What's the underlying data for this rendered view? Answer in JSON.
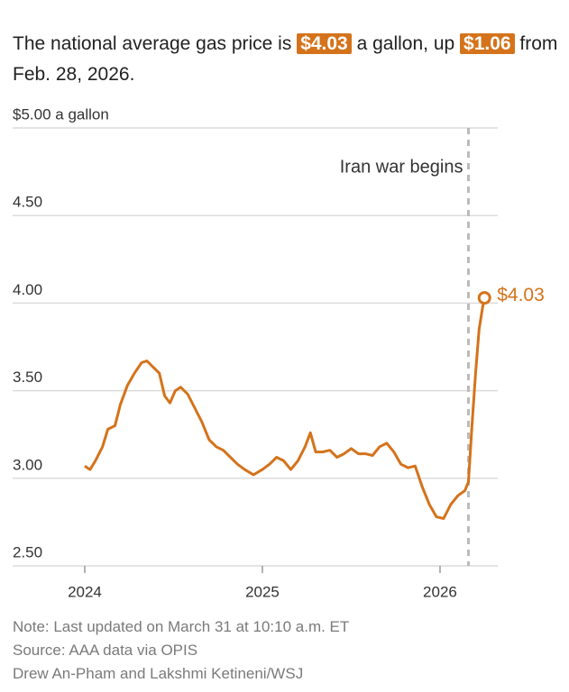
{
  "chart_data": {
    "type": "line",
    "title_parts": [
      "The national average gas price is ",
      "$4.03",
      " a gallon, up ",
      "$1.06",
      " from Feb. 28, 2026."
    ],
    "x": [
      2024.0,
      2024.03,
      2024.06,
      2024.1,
      2024.13,
      2024.17,
      2024.2,
      2024.24,
      2024.28,
      2024.32,
      2024.35,
      2024.38,
      2024.42,
      2024.45,
      2024.48,
      2024.51,
      2024.54,
      2024.58,
      2024.62,
      2024.66,
      2024.7,
      2024.74,
      2024.78,
      2024.82,
      2024.86,
      2024.9,
      2024.95,
      2025.0,
      2025.04,
      2025.08,
      2025.12,
      2025.16,
      2025.2,
      2025.24,
      2025.27,
      2025.3,
      2025.34,
      2025.38,
      2025.42,
      2025.46,
      2025.5,
      2025.54,
      2025.58,
      2025.62,
      2025.66,
      2025.7,
      2025.74,
      2025.78,
      2025.82,
      2025.86,
      2025.9,
      2025.94,
      2025.98,
      2026.02,
      2026.06,
      2026.1,
      2026.14,
      2026.16,
      2026.18,
      2026.2,
      2026.22,
      2026.24,
      2026.25
    ],
    "series": [
      {
        "color": "#d4731b",
        "values": [
          3.07,
          3.05,
          3.1,
          3.18,
          3.28,
          3.3,
          3.42,
          3.53,
          3.6,
          3.66,
          3.67,
          3.64,
          3.6,
          3.47,
          3.43,
          3.5,
          3.52,
          3.48,
          3.4,
          3.32,
          3.22,
          3.18,
          3.16,
          3.12,
          3.08,
          3.05,
          3.02,
          3.05,
          3.08,
          3.12,
          3.1,
          3.05,
          3.1,
          3.18,
          3.26,
          3.15,
          3.15,
          3.16,
          3.12,
          3.14,
          3.17,
          3.14,
          3.14,
          3.13,
          3.18,
          3.2,
          3.15,
          3.08,
          3.06,
          3.07,
          2.95,
          2.85,
          2.78,
          2.77,
          2.85,
          2.9,
          2.93,
          2.98,
          3.3,
          3.6,
          3.85,
          3.98,
          4.03
        ],
        "value_labels": {
          "62": "$4.03"
        }
      }
    ],
    "xlim": [
      2023.594,
      2026.325
    ],
    "xticks": [
      2024,
      2025,
      2026
    ],
    "ylim": [
      2.5,
      5
    ],
    "yticks": [
      {
        "value": 2.5,
        "label": "2.50"
      },
      {
        "value": 3,
        "label": "3.00"
      },
      {
        "value": 3.5,
        "label": "3.50"
      },
      {
        "value": 4,
        "label": "4.00"
      },
      {
        "value": 4.5,
        "label": "4.50"
      },
      {
        "value": 5,
        "label": "$5.00 a gallon"
      }
    ],
    "grid": true,
    "annotations": [
      {
        "x": 2026.16,
        "text": "Iran war begins"
      }
    ],
    "notes": [
      "Note: Last updated on March 31 at 10:10 a.m. ET",
      "Source: AAA data via OPIS",
      "Drew An-Pham and Lakshmi Ketineni/WSJ"
    ]
  }
}
